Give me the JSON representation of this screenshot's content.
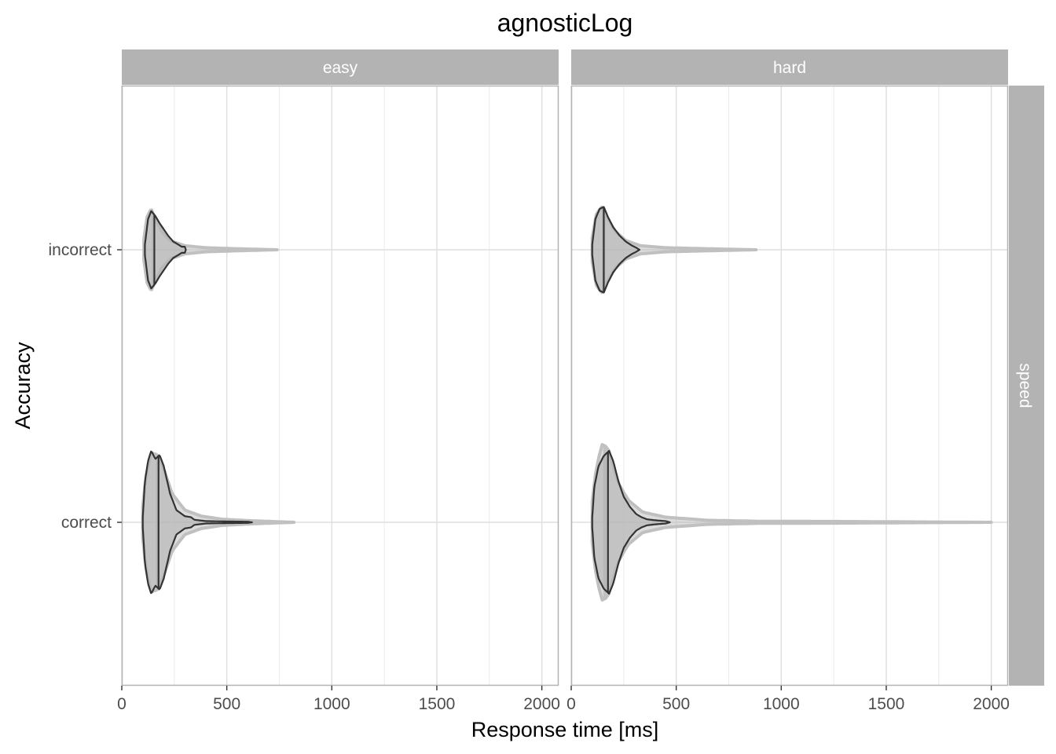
{
  "chart_data": {
    "type": "violin",
    "title": "agnosticLog",
    "xlabel": "Response time [ms]",
    "ylabel": "Accuracy",
    "xlim": [
      0,
      2080
    ],
    "x_ticks": [
      0,
      500,
      1000,
      1500,
      2000
    ],
    "x_tick_labels": [
      "0",
      "500",
      "1000",
      "1500",
      "2000"
    ],
    "categories": [
      "incorrect",
      "correct"
    ],
    "col_facets": [
      "easy",
      "hard"
    ],
    "row_facets": [
      "speed"
    ],
    "grid": true,
    "colors": {
      "strip": "#b3b3b3",
      "grid": "#dedede",
      "panel_border": "#b3b3b3",
      "predicted_fill": "#c0c0c0",
      "predicted_line": "#c0c0c0",
      "observed_fill": "#b3b3b3",
      "observed_line": "#333333"
    },
    "series": [
      {
        "role": "predicted",
        "violins": [
          {
            "facet": "easy",
            "category": "incorrect",
            "min": 105,
            "max": 740,
            "median": 150,
            "profile": [
              [
                105,
                0.1
              ],
              [
                120,
                0.32
              ],
              [
                140,
                0.4
              ],
              [
                160,
                0.3
              ],
              [
                190,
                0.18
              ],
              [
                230,
                0.09
              ],
              [
                300,
                0.04
              ],
              [
                400,
                0.02
              ],
              [
                550,
                0.01
              ],
              [
                740,
                0.0
              ]
            ]
          },
          {
            "facet": "easy",
            "category": "correct",
            "min": 100,
            "max": 820,
            "median": 170,
            "profile": [
              [
                100,
                0.15
              ],
              [
                115,
                0.45
              ],
              [
                140,
                0.68
              ],
              [
                170,
                0.66
              ],
              [
                200,
                0.52
              ],
              [
                240,
                0.28
              ],
              [
                300,
                0.12
              ],
              [
                380,
                0.06
              ],
              [
                480,
                0.03
              ],
              [
                620,
                0.015
              ],
              [
                820,
                0.0
              ]
            ]
          },
          {
            "facet": "hard",
            "category": "incorrect",
            "min": 100,
            "max": 880,
            "median": 155,
            "profile": [
              [
                100,
                0.12
              ],
              [
                120,
                0.35
              ],
              [
                145,
                0.42
              ],
              [
                175,
                0.3
              ],
              [
                210,
                0.18
              ],
              [
                260,
                0.09
              ],
              [
                330,
                0.04
              ],
              [
                450,
                0.02
              ],
              [
                650,
                0.01
              ],
              [
                880,
                0.0
              ]
            ]
          },
          {
            "facet": "hard",
            "category": "correct",
            "min": 100,
            "max": 2000,
            "median": 160,
            "profile": [
              [
                100,
                0.2
              ],
              [
                120,
                0.55
              ],
              [
                150,
                0.78
              ],
              [
                180,
                0.7
              ],
              [
                220,
                0.4
              ],
              [
                270,
                0.22
              ],
              [
                340,
                0.1
              ],
              [
                450,
                0.05
              ],
              [
                650,
                0.02
              ],
              [
                900,
                0.01
              ],
              [
                1300,
                0.008
              ],
              [
                2000,
                0.0
              ]
            ]
          }
        ]
      },
      {
        "role": "observed",
        "violins": [
          {
            "facet": "easy",
            "category": "incorrect",
            "min": 110,
            "max": 305,
            "median": 155,
            "profile": [
              [
                110,
                0.05
              ],
              [
                125,
                0.3
              ],
              [
                140,
                0.38
              ],
              [
                160,
                0.33
              ],
              [
                180,
                0.26
              ],
              [
                200,
                0.2
              ],
              [
                220,
                0.14
              ],
              [
                245,
                0.08
              ],
              [
                270,
                0.05
              ],
              [
                285,
                0.03
              ],
              [
                300,
                0.03
              ],
              [
                305,
                0.0
              ]
            ]
          },
          {
            "facet": "easy",
            "category": "correct",
            "min": 100,
            "max": 620,
            "median": 175,
            "profile": [
              [
                100,
                0.05
              ],
              [
                110,
                0.4
              ],
              [
                125,
                0.6
              ],
              [
                140,
                0.7
              ],
              [
                160,
                0.62
              ],
              [
                180,
                0.66
              ],
              [
                200,
                0.55
              ],
              [
                230,
                0.28
              ],
              [
                260,
                0.12
              ],
              [
                300,
                0.06
              ],
              [
                330,
                0.05
              ],
              [
                345,
                0.025
              ],
              [
                400,
                0.012
              ],
              [
                500,
                0.008
              ],
              [
                600,
                0.006
              ],
              [
                620,
                0.0
              ]
            ]
          },
          {
            "facet": "hard",
            "category": "incorrect",
            "min": 100,
            "max": 325,
            "median": 155,
            "profile": [
              [
                100,
                0.05
              ],
              [
                115,
                0.3
              ],
              [
                135,
                0.4
              ],
              [
                155,
                0.42
              ],
              [
                175,
                0.32
              ],
              [
                200,
                0.22
              ],
              [
                230,
                0.14
              ],
              [
                260,
                0.08
              ],
              [
                290,
                0.04
              ],
              [
                310,
                0.02
              ],
              [
                325,
                0.0
              ]
            ]
          },
          {
            "facet": "hard",
            "category": "correct",
            "min": 100,
            "max": 470,
            "median": 175,
            "profile": [
              [
                100,
                0.05
              ],
              [
                110,
                0.35
              ],
              [
                130,
                0.55
              ],
              [
                155,
                0.65
              ],
              [
                180,
                0.7
              ],
              [
                200,
                0.6
              ],
              [
                225,
                0.4
              ],
              [
                250,
                0.25
              ],
              [
                280,
                0.15
              ],
              [
                310,
                0.08
              ],
              [
                335,
                0.05
              ],
              [
                360,
                0.03
              ],
              [
                400,
                0.02
              ],
              [
                450,
                0.012
              ],
              [
                470,
                0.0
              ]
            ]
          }
        ]
      }
    ]
  }
}
